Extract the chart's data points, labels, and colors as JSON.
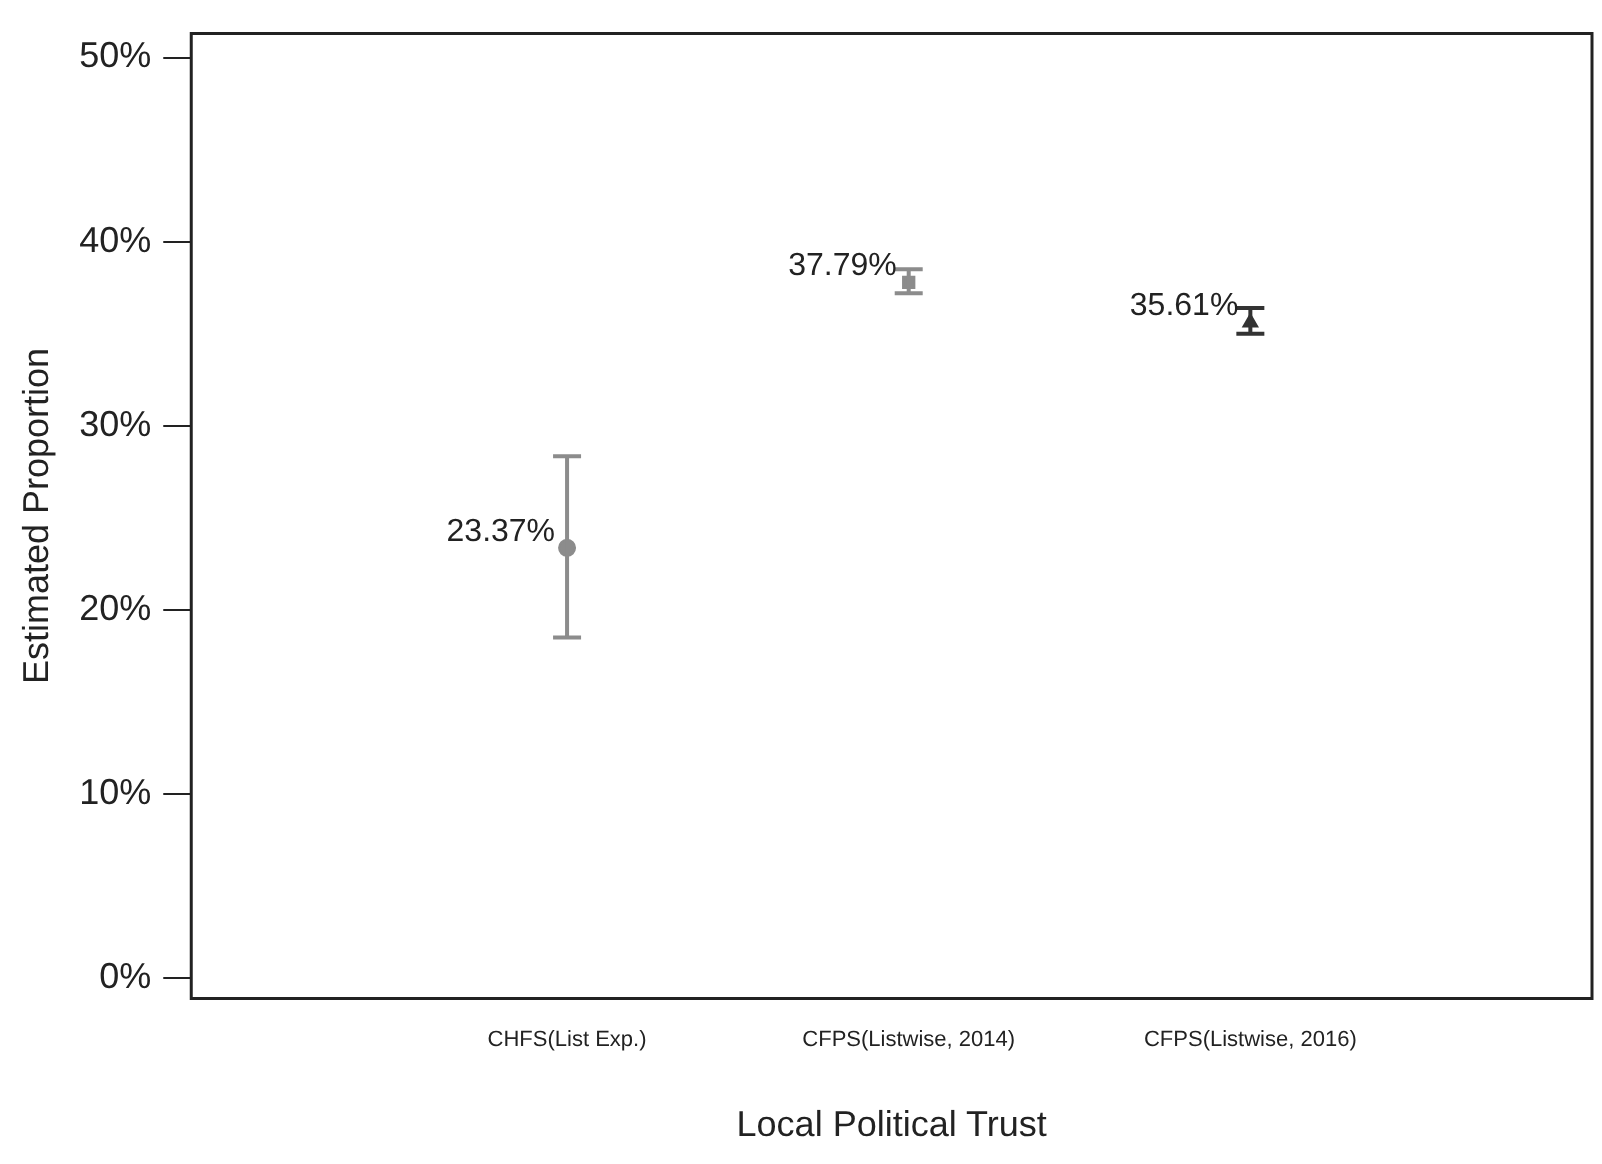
{
  "chart_data": {
    "type": "scatter",
    "xlabel": "Local Political Trust",
    "ylabel": "Estimated Proportion",
    "categories": [
      "CHFS(List Exp.)",
      "CFPS(Listwise, 2014)",
      "CFPS(Listwise, 2016)"
    ],
    "series": [
      {
        "color": "#8c8c8c",
        "marker": "circle",
        "values": [
          23.37,
          null,
          null
        ],
        "errors": [
          [
            18.5,
            28.35
          ],
          null,
          null
        ],
        "value_labels": [
          "23.37%",
          null,
          null
        ]
      },
      {
        "color": "#8c8c8c",
        "marker": "square",
        "values": [
          null,
          37.79,
          null
        ],
        "errors": [
          null,
          [
            37.2,
            38.5
          ],
          null
        ],
        "value_labels": [
          null,
          "37.79%",
          null
        ]
      },
      {
        "color": "#333333",
        "marker": "triangle",
        "values": [
          null,
          null,
          35.61
        ],
        "errors": [
          null,
          null,
          [
            35.0,
            36.4
          ]
        ],
        "value_labels": [
          null,
          null,
          "35.61%"
        ]
      }
    ],
    "ylim": [
      -1.1,
      51.3
    ],
    "yticks": [
      {
        "value": 0,
        "label": "0%"
      },
      {
        "value": 10,
        "label": "10%"
      },
      {
        "value": 20,
        "label": "20%"
      },
      {
        "value": 30,
        "label": "30%"
      },
      {
        "value": 40,
        "label": "40%"
      },
      {
        "value": 50,
        "label": "50%"
      }
    ],
    "grid": false,
    "legend": false
  }
}
